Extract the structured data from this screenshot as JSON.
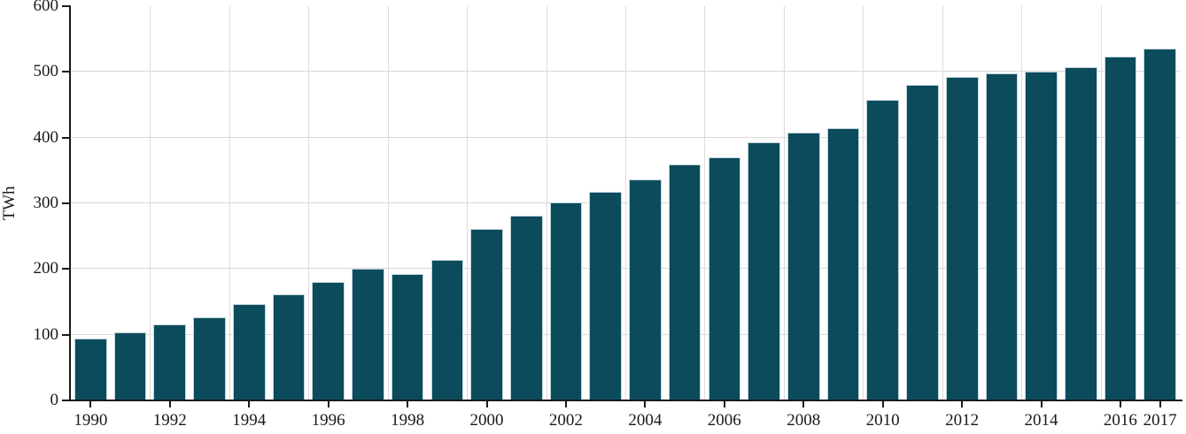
{
  "chart": {
    "y_axis_title": "TWh",
    "bar_color": "#0b4b5c",
    "bar_border_color": "#c2d5dc",
    "grid_color": "#d9d9d9",
    "axis_color": "#1a1a1a",
    "text_color": "#1a1a1a"
  },
  "chart_data": {
    "type": "bar",
    "title": "",
    "xlabel": "",
    "ylabel": "TWh",
    "ylim": [
      0,
      600
    ],
    "yticks": [
      0,
      100,
      200,
      300,
      400,
      500,
      600
    ],
    "grid": true,
    "legend": false,
    "categories": [
      1990,
      1991,
      1992,
      1993,
      1994,
      1995,
      1996,
      1997,
      1998,
      1999,
      2000,
      2001,
      2002,
      2003,
      2004,
      2005,
      2006,
      2007,
      2008,
      2009,
      2010,
      2011,
      2012,
      2013,
      2014,
      2015,
      2016,
      2017
    ],
    "values": [
      94,
      104,
      116,
      127,
      146,
      162,
      180,
      200,
      192,
      214,
      261,
      281,
      301,
      318,
      337,
      359,
      370,
      393,
      407,
      415,
      457,
      480,
      493,
      498,
      500,
      507,
      523,
      535
    ],
    "x_tick_years": [
      1990,
      1992,
      1994,
      1996,
      1998,
      2000,
      2002,
      2004,
      2006,
      2008,
      2010,
      2012,
      2014,
      2016,
      2017
    ],
    "x_grid_every": 2
  }
}
